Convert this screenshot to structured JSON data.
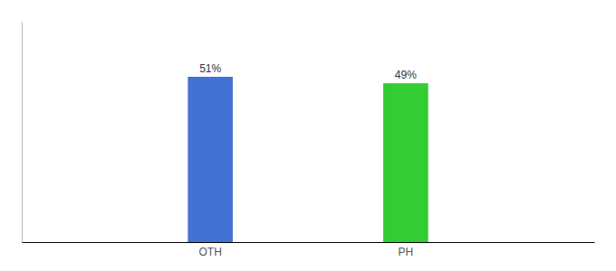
{
  "chart_data": {
    "type": "bar",
    "categories": [
      "OTH",
      "PH"
    ],
    "values": [
      51,
      49
    ],
    "value_labels": [
      "51%",
      "49%"
    ],
    "colors": [
      "#4472d4",
      "#33cc33"
    ],
    "ylim": [
      0,
      68
    ],
    "data_labels": true,
    "tick_labels": "x"
  }
}
